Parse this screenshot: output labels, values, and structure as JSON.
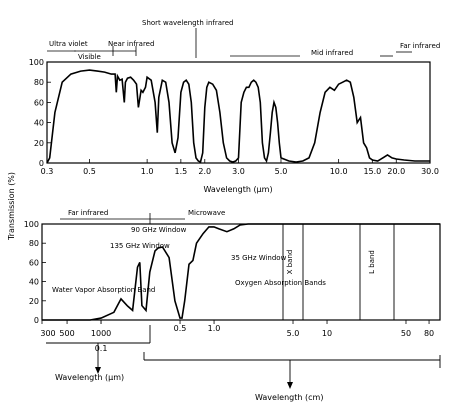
{
  "y_axis_label": "Transmission (%)",
  "chart_data": [
    {
      "type": "line",
      "xlabel": "Wavelength (μm)",
      "ylabel": "Transmission (%)",
      "xscale": "log",
      "xlim": [
        0.3,
        30.0
      ],
      "ylim": [
        0,
        100
      ],
      "xticks": [
        "0.3",
        "0.5",
        "1.0",
        "1.5",
        "2.0",
        "3.0",
        "5.0",
        "10.0",
        "15.0",
        "20.0",
        "30.0"
      ],
      "yticks": [
        "0",
        "20",
        "40",
        "60",
        "80",
        "100"
      ],
      "region_labels": [
        "Ultra violet",
        "Visible",
        "Near infrared",
        "Short wavelength infrared",
        "Mid infrared",
        "Far infrared"
      ],
      "x": [
        0.3,
        0.31,
        0.33,
        0.36,
        0.4,
        0.45,
        0.5,
        0.55,
        0.6,
        0.65,
        0.68,
        0.69,
        0.7,
        0.72,
        0.74,
        0.76,
        0.77,
        0.79,
        0.82,
        0.85,
        0.88,
        0.9,
        0.93,
        0.95,
        0.98,
        1.0,
        1.05,
        1.1,
        1.13,
        1.15,
        1.2,
        1.25,
        1.3,
        1.35,
        1.4,
        1.45,
        1.5,
        1.55,
        1.6,
        1.65,
        1.7,
        1.75,
        1.8,
        1.85,
        1.9,
        1.95,
        2.0,
        2.05,
        2.1,
        2.2,
        2.3,
        2.4,
        2.5,
        2.6,
        2.7,
        2.8,
        2.9,
        3.0,
        3.1,
        3.2,
        3.3,
        3.4,
        3.5,
        3.6,
        3.7,
        3.8,
        3.9,
        4.0,
        4.1,
        4.2,
        4.3,
        4.4,
        4.5,
        4.6,
        4.7,
        4.8,
        4.9,
        5.0,
        5.5,
        6.0,
        6.5,
        7.0,
        7.5,
        8.0,
        8.5,
        9.0,
        9.5,
        10.0,
        10.5,
        11.0,
        11.5,
        12.0,
        12.5,
        13.0,
        13.5,
        14.0,
        14.5,
        15.0,
        16.0,
        17.0,
        18.0,
        19.0,
        20.0,
        22.0,
        25.0,
        30.0
      ],
      "y": [
        0,
        5,
        50,
        80,
        88,
        91,
        92,
        91,
        90,
        88,
        88,
        70,
        86,
        82,
        83,
        60,
        80,
        84,
        85,
        82,
        78,
        55,
        72,
        70,
        75,
        85,
        82,
        60,
        30,
        65,
        82,
        80,
        60,
        20,
        10,
        25,
        70,
        80,
        82,
        78,
        60,
        20,
        5,
        2,
        1,
        10,
        55,
        75,
        80,
        78,
        72,
        50,
        20,
        5,
        2,
        1,
        2,
        5,
        60,
        70,
        75,
        75,
        80,
        82,
        80,
        75,
        60,
        20,
        5,
        2,
        10,
        30,
        50,
        60,
        55,
        40,
        20,
        5,
        2,
        1,
        2,
        5,
        20,
        50,
        70,
        75,
        72,
        78,
        80,
        82,
        80,
        65,
        40,
        45,
        20,
        15,
        5,
        3,
        2,
        5,
        8,
        5,
        4,
        3,
        2,
        2
      ]
    },
    {
      "type": "line",
      "xlabel": "Wavelength (μm)",
      "xlabel2": "Wavelength (cm)",
      "ylabel": "Transmission (%)",
      "xscale": "log",
      "yticks": [
        "0",
        "20",
        "40",
        "60",
        "80",
        "100"
      ],
      "xticks_um": [
        "300",
        "500",
        "1000"
      ],
      "xticks_cm": [
        "0.1",
        "0.5",
        "1.0",
        "5.0",
        "10",
        "50",
        "80"
      ],
      "region_labels": [
        "Far infrared",
        "Microwave"
      ],
      "band_labels": [
        "X band",
        "L band"
      ],
      "annotations": [
        "90 GHz Window",
        "135 GHz Window",
        "35 GHz Window",
        "Oxygen Absorption Bands",
        "Water Vapor Absorption Band"
      ],
      "x_cm": [
        0.03,
        0.05,
        0.08,
        0.1,
        0.13,
        0.15,
        0.17,
        0.19,
        0.21,
        0.22,
        0.23,
        0.25,
        0.27,
        0.3,
        0.32,
        0.35,
        0.4,
        0.45,
        0.5,
        0.52,
        0.55,
        0.6,
        0.65,
        0.7,
        0.8,
        0.9,
        1.0,
        1.1,
        1.3,
        1.5,
        1.7,
        2.0,
        2.5,
        3.0,
        5.0,
        10,
        20,
        50,
        100
      ],
      "y": [
        0,
        0,
        0,
        2,
        8,
        22,
        15,
        10,
        55,
        60,
        15,
        10,
        50,
        72,
        75,
        76,
        65,
        20,
        2,
        2,
        20,
        58,
        62,
        80,
        90,
        97,
        97,
        95,
        92,
        95,
        99,
        100,
        100,
        100,
        100,
        100,
        100,
        100,
        100
      ]
    }
  ],
  "arrow_labels": {
    "um": "Wavelength (μm)",
    "cm": "Wavelength (cm)"
  }
}
